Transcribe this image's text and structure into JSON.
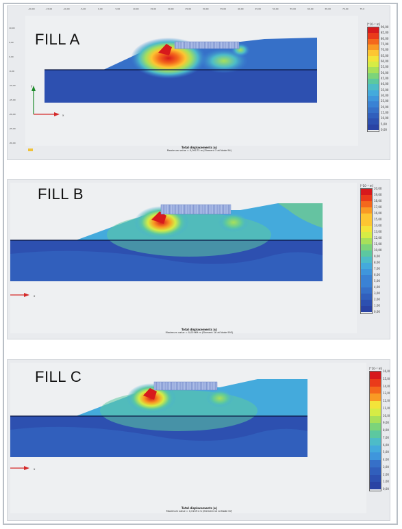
{
  "panels": [
    {
      "label": "FILL A",
      "legend_unit": "[*10⁻³ m]",
      "legend_ticks": [
        "90,00",
        "85,00",
        "80,00",
        "75,00",
        "70,00",
        "65,00",
        "60,00",
        "55,00",
        "50,00",
        "45,00",
        "40,00",
        "35,00",
        "30,00",
        "25,00",
        "20,00",
        "15,00",
        "10,00",
        "5,00",
        "0,00"
      ],
      "caption_title": "Total displacements |u|",
      "caption_value": "Maximum value = 0,09173 m (Element 3 at Node 94)",
      "ruler_top": [
        "-20,00",
        "-15,00",
        "-10,00",
        "-5,00",
        "0,00",
        "5,00",
        "10,00",
        "15,00",
        "20,00",
        "25,00",
        "30,00",
        "35,00",
        "40,00",
        "45,00",
        "50,00",
        "55,00",
        "60,00",
        "65,00",
        "70,00",
        "75,0"
      ],
      "ruler_left": [
        "10,00",
        "5,00",
        "0,00",
        "-5,00",
        "-10,00",
        "-15,00",
        "-20,00",
        "-25,00",
        "-30,00"
      ]
    },
    {
      "label": "FILL B",
      "legend_unit": "[*10⁻³ m]",
      "legend_ticks": [
        "20,00",
        "19,00",
        "18,00",
        "17,00",
        "16,00",
        "15,00",
        "14,00",
        "13,00",
        "12,00",
        "11,00",
        "10,00",
        "9,00",
        "8,00",
        "7,00",
        "6,00",
        "5,00",
        "4,00",
        "3,00",
        "2,00",
        "1,00",
        "0,00"
      ],
      "caption_title": "Total displacements |u|",
      "caption_value": "Maximum value = 0,01969 m (Element 16 at Node 993)"
    },
    {
      "label": "FILL C",
      "legend_unit": "[*10⁻³ m]",
      "legend_ticks": [
        "16,00",
        "15,00",
        "14,00",
        "13,00",
        "12,00",
        "11,00",
        "10,00",
        "9,00",
        "8,00",
        "7,00",
        "6,00",
        "5,00",
        "4,00",
        "3,00",
        "2,00",
        "1,00",
        "0,00"
      ],
      "caption_title": "Total displacements |u|",
      "caption_value": "Maximum value = 0,01591 m (Element 12 at Node 67)"
    }
  ],
  "axis_labels": {
    "x": "x",
    "y": "y"
  },
  "colors": {
    "legend_scale": [
      "#d7191c",
      "#ea3a1a",
      "#f4681c",
      "#f99a24",
      "#fdc632",
      "#f3e43a",
      "#d6ec45",
      "#a8e05a",
      "#7cd47a",
      "#5cc8a0",
      "#4dbcc8",
      "#44aadc",
      "#3f96dc",
      "#3a82d4",
      "#3670c8",
      "#315fbc",
      "#2d50b0",
      "#2a43a4"
    ]
  }
}
